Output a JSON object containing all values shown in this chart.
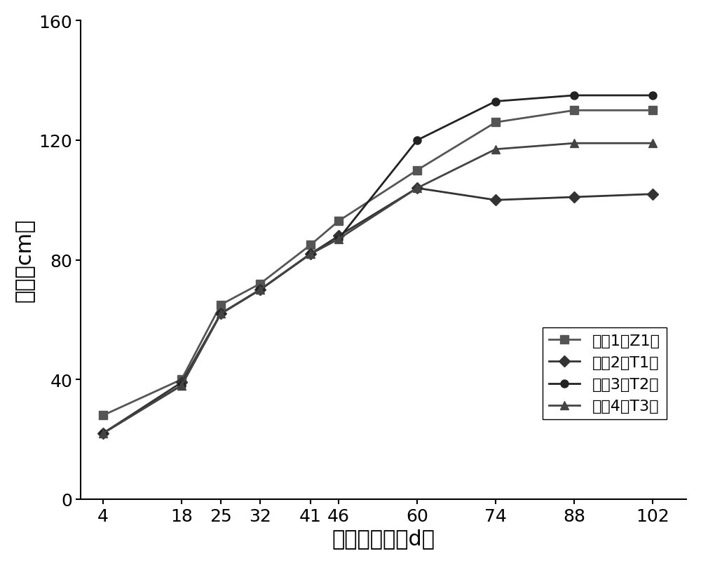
{
  "x": [
    4,
    18,
    25,
    32,
    41,
    46,
    60,
    74,
    88,
    102
  ],
  "series": [
    {
      "label": "温室1（Z1）",
      "values": [
        28,
        40,
        65,
        72,
        85,
        93,
        110,
        126,
        130,
        130
      ],
      "marker": "s",
      "color": "#555555",
      "linewidth": 2.0
    },
    {
      "label": "温室2（T1）",
      "values": [
        22,
        39,
        62,
        70,
        82,
        88,
        104,
        100,
        101,
        102
      ],
      "marker": "D",
      "color": "#333333",
      "linewidth": 2.0
    },
    {
      "label": "温室3（T2）",
      "values": [
        22,
        38,
        62,
        70,
        82,
        87,
        120,
        133,
        135,
        135
      ],
      "marker": "o",
      "color": "#222222",
      "linewidth": 2.0
    },
    {
      "label": "温室4（T3）",
      "values": [
        22,
        38,
        62,
        70,
        82,
        87,
        104,
        117,
        119,
        119
      ],
      "marker": "^",
      "color": "#444444",
      "linewidth": 2.0
    }
  ],
  "xlabel": "移栽后天数（d）",
  "ylabel": "株高（cm）",
  "xlim": [
    0,
    108
  ],
  "ylim": [
    0,
    160
  ],
  "yticks": [
    0,
    40,
    80,
    120,
    160
  ],
  "xticks": [
    4,
    18,
    25,
    32,
    41,
    46,
    60,
    74,
    88,
    102
  ],
  "legend_loc": "lower right",
  "xlabel_fontsize": 22,
  "ylabel_fontsize": 22,
  "tick_fontsize": 18,
  "legend_fontsize": 16,
  "marker_size": 8,
  "figure_facecolor": "#ffffff"
}
